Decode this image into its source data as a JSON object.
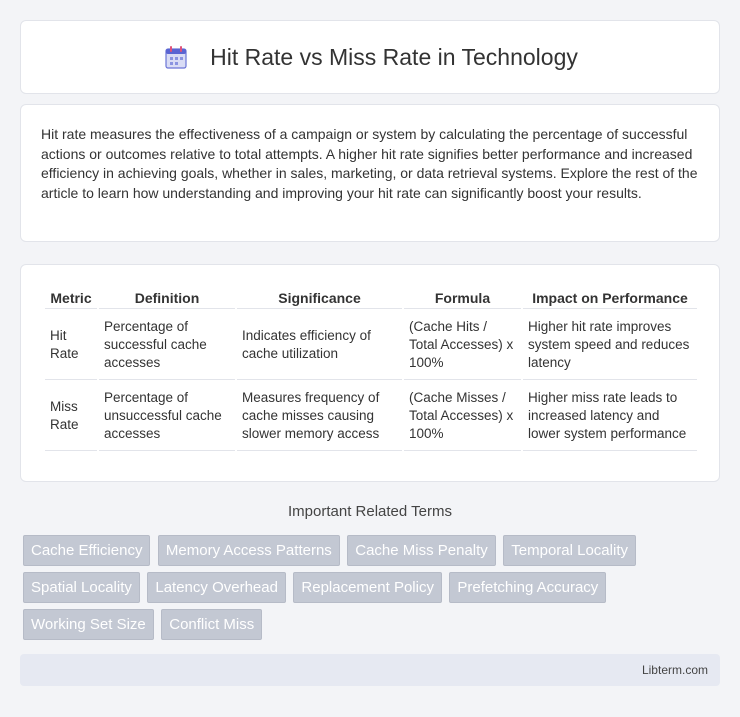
{
  "header": {
    "title": "Hit Rate vs Miss Rate in Technology",
    "icon": "calendar-icon"
  },
  "intro": {
    "text": "Hit rate measures the effectiveness of a campaign or system by calculating the percentage of successful actions or outcomes relative to total attempts. A higher hit rate signifies better performance and increased efficiency in achieving goals, whether in sales, marketing, or data retrieval systems. Explore the rest of the article to learn how understanding and improving your hit rate can significantly boost your results."
  },
  "table": {
    "headers": [
      "Metric",
      "Definition",
      "Significance",
      "Formula",
      "Impact on Performance"
    ],
    "rows": [
      [
        "Hit Rate",
        "Percentage of successful cache accesses",
        "Indicates efficiency of cache utilization",
        "(Cache Hits / Total Accesses) x 100%",
        "Higher hit rate improves system speed and reduces latency"
      ],
      [
        "Miss Rate",
        "Percentage of unsuccessful cache accesses",
        "Measures frequency of cache misses causing slower memory access",
        "(Cache Misses / Total Accesses) x 100%",
        "Higher miss rate leads to increased latency and lower system performance"
      ]
    ]
  },
  "related": {
    "title": "Important Related Terms",
    "terms": [
      "Cache Efficiency",
      "Memory Access Patterns",
      "Cache Miss Penalty",
      "Temporal Locality",
      "Spatial Locality",
      "Latency Overhead",
      "Replacement Policy",
      "Prefetching Accuracy",
      "Working Set Size",
      "Conflict Miss"
    ]
  },
  "footer": {
    "site": "Libterm.com"
  }
}
